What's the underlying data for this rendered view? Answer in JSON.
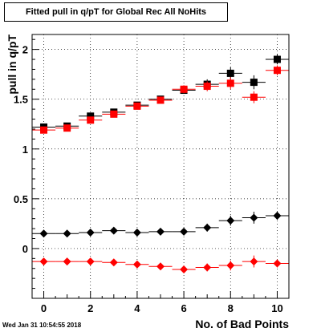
{
  "window": {
    "title": "Fitted pull in q/pT for Global Rec All NoHits",
    "timestamp": "Wed Jan 31 10:54:55 2018"
  },
  "chart_data": {
    "type": "scatter",
    "title": "Fitted pull in q/pT for Global Rec All NoHits",
    "xlabel": "No. of Bad Points",
    "ylabel": "pull in q/pT",
    "xlim": [
      -0.5,
      10.5
    ],
    "ylim": [
      -0.5,
      2.15
    ],
    "x_ticks": [
      0,
      2,
      4,
      6,
      8,
      10
    ],
    "y_ticks": [
      0,
      0.5,
      1,
      1.5,
      2
    ],
    "y_tick_labels": [
      "0",
      "0.5",
      "1",
      "1.5",
      "2"
    ],
    "grid": true,
    "series": [
      {
        "marker": "square",
        "color": "#000000",
        "x": [
          0,
          1,
          2,
          3,
          4,
          5,
          6,
          7,
          8,
          9,
          10
        ],
        "y": [
          1.22,
          1.23,
          1.33,
          1.37,
          1.44,
          1.5,
          1.59,
          1.65,
          1.76,
          1.67,
          1.9
        ],
        "yerr": [
          0.03,
          0.03,
          0.03,
          0.03,
          0.03,
          0.03,
          0.03,
          0.05,
          0.06,
          0.07,
          0.05
        ]
      },
      {
        "marker": "square",
        "color": "#ff0000",
        "x": [
          0,
          1,
          2,
          3,
          4,
          5,
          6,
          7,
          8,
          9,
          10
        ],
        "y": [
          1.19,
          1.21,
          1.29,
          1.35,
          1.43,
          1.49,
          1.6,
          1.63,
          1.66,
          1.52,
          1.79
        ],
        "yerr": [
          0.03,
          0.03,
          0.03,
          0.03,
          0.03,
          0.03,
          0.04,
          0.05,
          0.06,
          0.06,
          0.05
        ]
      },
      {
        "marker": "diamond",
        "color": "#000000",
        "x": [
          0,
          1,
          2,
          3,
          4,
          5,
          6,
          7,
          8,
          9,
          10
        ],
        "y": [
          0.15,
          0.15,
          0.16,
          0.18,
          0.16,
          0.17,
          0.17,
          0.21,
          0.28,
          0.31,
          0.33
        ],
        "yerr": [
          0.02,
          0.02,
          0.02,
          0.02,
          0.02,
          0.02,
          0.03,
          0.04,
          0.05,
          0.06,
          0.04
        ]
      },
      {
        "marker": "diamond",
        "color": "#ff0000",
        "x": [
          0,
          1,
          2,
          3,
          4,
          5,
          6,
          7,
          8,
          9,
          10
        ],
        "y": [
          -0.13,
          -0.13,
          -0.13,
          -0.14,
          -0.16,
          -0.18,
          -0.21,
          -0.19,
          -0.17,
          -0.13,
          -0.15
        ],
        "yerr": [
          0.02,
          0.02,
          0.02,
          0.02,
          0.02,
          0.02,
          0.03,
          0.04,
          0.05,
          0.06,
          0.04
        ]
      }
    ]
  }
}
